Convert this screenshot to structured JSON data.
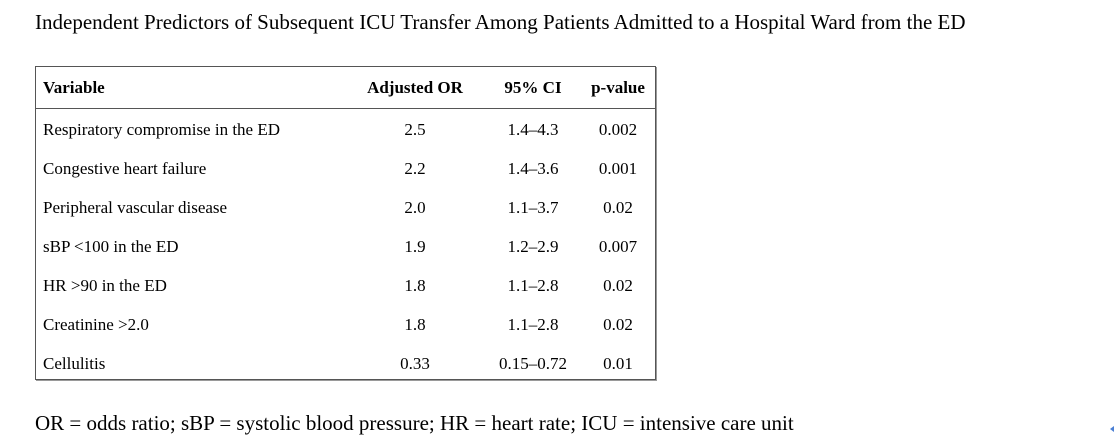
{
  "title": "Independent Predictors of Subsequent ICU Transfer Among Patients Admitted to a Hospital Ward from the ED",
  "table": {
    "headers": {
      "variable": "Variable",
      "adjusted_or": "Adjusted OR",
      "ci": "95% CI",
      "p_value": "p-value"
    },
    "rows": [
      {
        "variable": "Respiratory compromise in the ED",
        "adjusted_or": "2.5",
        "ci": "1.4–4.3",
        "p_value": "0.002"
      },
      {
        "variable": "Congestive heart failure",
        "adjusted_or": "2.2",
        "ci": "1.4–3.6",
        "p_value": "0.001"
      },
      {
        "variable": "Peripheral vascular disease",
        "adjusted_or": "2.0",
        "ci": "1.1–3.7",
        "p_value": "0.02"
      },
      {
        "variable": "sBP <100 in the ED",
        "adjusted_or": "1.9",
        "ci": "1.2–2.9",
        "p_value": "0.007"
      },
      {
        "variable": "HR >90 in the ED",
        "adjusted_or": "1.8",
        "ci": "1.1–2.8",
        "p_value": "0.02"
      },
      {
        "variable": "Creatinine >2.0",
        "adjusted_or": "1.8",
        "ci": "1.1–2.8",
        "p_value": "0.02"
      },
      {
        "variable": "Cellulitis",
        "adjusted_or": "0.33",
        "ci": "0.15–0.72",
        "p_value": "0.01"
      }
    ]
  },
  "footnote": "OR = odds ratio; sBP = systolic blood pressure; HR = heart rate; ICU = intensive care unit",
  "colors": {
    "border": "#555555",
    "scroll_marker": "#4a7fd4"
  }
}
